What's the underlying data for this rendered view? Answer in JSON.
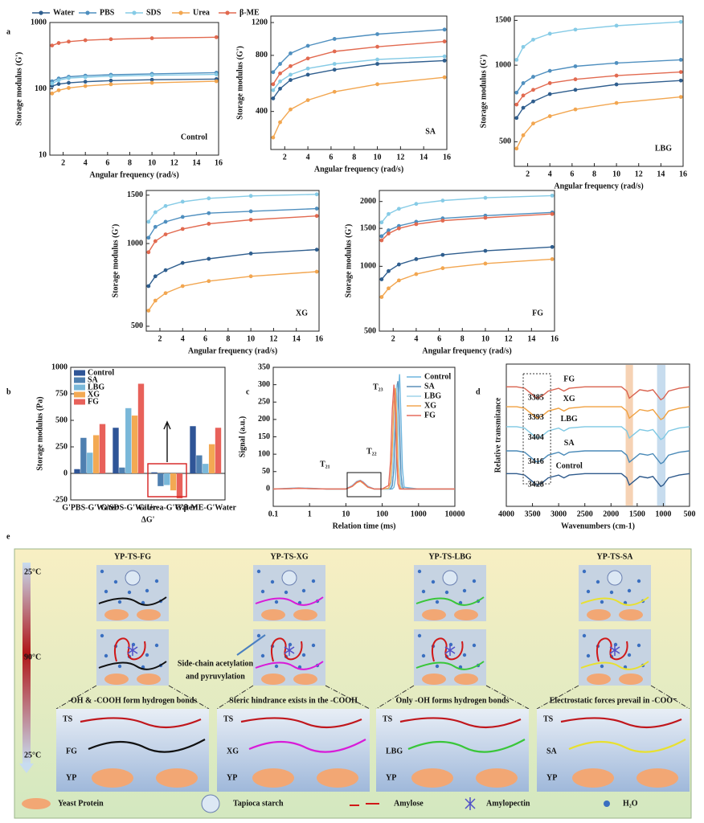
{
  "chart_data": [
    {
      "type": "line",
      "panel": "a",
      "label": "Control",
      "legend": true,
      "markers": true,
      "yscale": "log",
      "x_label": "Angular frequency (rad/s)",
      "y_label": "Storage modulus (G')",
      "x": [
        1,
        1.6,
        2.5,
        4,
        6.3,
        10,
        15.8
      ],
      "xlim": [
        0.8,
        16
      ],
      "xticks": [
        2,
        4,
        6,
        8,
        10,
        12,
        14,
        16
      ],
      "ylim": [
        10,
        1000
      ],
      "yticks": [
        10,
        100,
        1000
      ],
      "series": [
        {
          "name": "Water",
          "color": "#2f5e8e",
          "values": [
            110,
            118,
            123,
            128,
            133,
            137,
            140
          ]
        },
        {
          "name": "PBS",
          "color": "#4f8fbf",
          "values": [
            130,
            143,
            152,
            158,
            163,
            168,
            175
          ]
        },
        {
          "name": "SDS",
          "color": "#86cbe6",
          "values": [
            120,
            135,
            145,
            150,
            155,
            160,
            165
          ]
        },
        {
          "name": "Urea",
          "color": "#f2a650",
          "values": [
            85,
            95,
            103,
            110,
            117,
            123,
            130
          ]
        },
        {
          "name": "β-ME",
          "color": "#e26a50",
          "values": [
            450,
            490,
            515,
            540,
            560,
            580,
            600
          ]
        }
      ]
    },
    {
      "type": "line",
      "label": "SA",
      "markers": true,
      "yscale": "log",
      "x_label": "Angular frequency (rad/s)",
      "y_label": "Storage modulus (G')",
      "x": [
        1,
        1.6,
        2.5,
        4,
        6.3,
        10,
        15.8
      ],
      "xlim": [
        0.8,
        16
      ],
      "xticks": [
        2,
        4,
        6,
        8,
        10,
        12,
        14,
        16
      ],
      "ylim": [
        250,
        1300
      ],
      "yticks": [
        400,
        800,
        1200
      ],
      "series": [
        {
          "color": "#2f5e8e",
          "values": [
            470,
            530,
            590,
            630,
            670,
            720,
            750
          ]
        },
        {
          "color": "#4f8fbf",
          "values": [
            650,
            720,
            820,
            900,
            980,
            1040,
            1100
          ]
        },
        {
          "color": "#86cbe6",
          "values": [
            520,
            580,
            630,
            680,
            720,
            760,
            790
          ]
        },
        {
          "color": "#f2a650",
          "values": [
            290,
            350,
            410,
            460,
            510,
            560,
            610
          ]
        },
        {
          "color": "#e26a50",
          "values": [
            560,
            640,
            700,
            770,
            840,
            890,
            950
          ]
        }
      ]
    },
    {
      "type": "line",
      "label": "LBG",
      "markers": true,
      "yscale": "log",
      "x_label": "Angular frequency (rad/s)",
      "y_label": "Storage modulus (G')",
      "x": [
        1,
        1.6,
        2.5,
        4,
        6.3,
        10,
        15.8
      ],
      "xlim": [
        0.8,
        16
      ],
      "xticks": [
        2,
        4,
        6,
        8,
        10,
        12,
        14,
        16
      ],
      "ylim": [
        400,
        1560
      ],
      "yticks": [
        500,
        1000,
        1500
      ],
      "series": [
        {
          "color": "#2f5e8e",
          "values": [
            620,
            680,
            720,
            770,
            800,
            840,
            870
          ]
        },
        {
          "color": "#4f8fbf",
          "values": [
            780,
            850,
            900,
            950,
            990,
            1020,
            1050
          ]
        },
        {
          "color": "#86cbe6",
          "values": [
            1050,
            1180,
            1260,
            1330,
            1380,
            1430,
            1480
          ]
        },
        {
          "color": "#f2a650",
          "values": [
            470,
            530,
            590,
            630,
            670,
            710,
            750
          ]
        },
        {
          "color": "#e26a50",
          "values": [
            700,
            760,
            800,
            850,
            880,
            910,
            940
          ]
        }
      ]
    },
    {
      "type": "line",
      "label": "XG",
      "markers": true,
      "yscale": "log",
      "x_label": "Angular frequency (rad/s)",
      "y_label": "Storage modulus (G')",
      "x": [
        1,
        1.6,
        2.5,
        4,
        6.3,
        10,
        15.8
      ],
      "xlim": [
        0.8,
        16
      ],
      "xticks": [
        2,
        4,
        6,
        8,
        10,
        12,
        14,
        16
      ],
      "ylim": [
        480,
        1560
      ],
      "yticks": [
        500,
        1000,
        1500
      ],
      "series": [
        {
          "color": "#2f5e8e",
          "values": [
            700,
            760,
            800,
            850,
            880,
            920,
            950
          ]
        },
        {
          "color": "#4f8fbf",
          "values": [
            1050,
            1150,
            1200,
            1250,
            1290,
            1310,
            1340
          ]
        },
        {
          "color": "#86cbe6",
          "values": [
            1200,
            1300,
            1370,
            1420,
            1460,
            1490,
            1510
          ]
        },
        {
          "color": "#f2a650",
          "values": [
            570,
            620,
            660,
            700,
            730,
            760,
            790
          ]
        },
        {
          "color": "#e26a50",
          "values": [
            930,
            1020,
            1080,
            1130,
            1180,
            1220,
            1260
          ]
        }
      ]
    },
    {
      "type": "line",
      "label": "FG",
      "markers": true,
      "yscale": "log",
      "x_label": "Angular frequency (rad/s)",
      "y_label": "Storage modulus (G')",
      "x": [
        1,
        1.6,
        2.5,
        4,
        6.3,
        10,
        15.8
      ],
      "xlim": [
        0.8,
        16
      ],
      "xticks": [
        2,
        4,
        6,
        8,
        10,
        12,
        14,
        16
      ],
      "ylim": [
        500,
        2250
      ],
      "yticks": [
        500,
        1000,
        1500,
        2000
      ],
      "series": [
        {
          "color": "#2f5e8e",
          "values": [
            870,
            950,
            1020,
            1080,
            1130,
            1180,
            1230
          ]
        },
        {
          "color": "#4f8fbf",
          "values": [
            1380,
            1470,
            1540,
            1610,
            1670,
            1720,
            1780
          ]
        },
        {
          "color": "#86cbe6",
          "values": [
            1600,
            1750,
            1850,
            1950,
            2020,
            2080,
            2130
          ]
        },
        {
          "color": "#f2a650",
          "values": [
            720,
            790,
            860,
            920,
            980,
            1030,
            1080
          ]
        },
        {
          "color": "#e26a50",
          "values": [
            1320,
            1420,
            1500,
            1570,
            1630,
            1680,
            1750
          ]
        }
      ]
    },
    {
      "type": "bar",
      "panel": "b",
      "x_label": "ΔG'",
      "y_label": "Storage modulus (Pa)",
      "categories": [
        "G'PBS-G'Water",
        "G'SDS-G'Water",
        "G'Urea-G'Water",
        "G'β-ME-G'Water"
      ],
      "ylim": [
        -250,
        1000
      ],
      "yticks": [
        -250,
        0,
        250,
        500,
        750,
        1000
      ],
      "series": [
        {
          "name": "Control",
          "color": "#2f5597",
          "values": [
            40,
            430,
            10,
            445
          ]
        },
        {
          "name": "SA",
          "color": "#4e7fb0",
          "values": [
            335,
            55,
            -120,
            170
          ]
        },
        {
          "name": "LBG",
          "color": "#7ab8d9",
          "values": [
            195,
            615,
            -110,
            90
          ]
        },
        {
          "name": "XG",
          "color": "#f3a953",
          "values": [
            360,
            545,
            -160,
            275
          ]
        },
        {
          "name": "FG",
          "color": "#e8615a",
          "values": [
            465,
            845,
            -235,
            430
          ]
        }
      ]
    },
    {
      "type": "line",
      "panel": "c",
      "legend": true,
      "xscale": "log",
      "x_label": "Relation time (ms)",
      "y_label": "Signal (a.u.)",
      "annotations": [
        "T₂₁",
        "T₂₂",
        "T₂₃"
      ],
      "x": [
        0.1,
        0.3,
        0.5,
        1,
        3,
        10,
        15,
        20,
        25,
        30,
        40,
        60,
        100,
        150,
        170,
        190,
        210,
        230,
        250,
        270,
        300,
        330,
        360,
        400,
        1000,
        10000
      ],
      "xlim": [
        0.1,
        10000
      ],
      "xticks": [
        0.1,
        1,
        10,
        100,
        1000,
        10000
      ],
      "ylim": [
        -50,
        350
      ],
      "yticks": [
        0,
        50,
        100,
        150,
        200,
        250,
        300,
        350
      ],
      "series": [
        {
          "name": "Control",
          "color": "#6fb6df",
          "values": [
            0,
            2,
            3,
            2,
            0,
            0,
            10,
            22,
            25,
            20,
            8,
            0,
            0,
            0,
            0,
            0,
            5,
            30,
            120,
            250,
            330,
            200,
            60,
            5,
            0,
            0
          ]
        },
        {
          "name": "SA",
          "color": "#5b8fb9",
          "values": [
            0,
            1,
            2,
            1,
            0,
            0,
            8,
            20,
            23,
            18,
            6,
            0,
            0,
            0,
            0,
            10,
            60,
            180,
            290,
            310,
            180,
            40,
            5,
            0,
            0,
            0
          ]
        },
        {
          "name": "LBG",
          "color": "#9fd3ea",
          "values": [
            0,
            1,
            2,
            1,
            0,
            0,
            9,
            21,
            24,
            19,
            7,
            0,
            0,
            0,
            5,
            40,
            150,
            270,
            300,
            200,
            60,
            8,
            0,
            0,
            0,
            0
          ]
        },
        {
          "name": "XG",
          "color": "#f2a552",
          "values": [
            0,
            1,
            2,
            1,
            0,
            0,
            7,
            18,
            22,
            16,
            5,
            0,
            0,
            2,
            20,
            120,
            250,
            290,
            200,
            70,
            10,
            0,
            0,
            0,
            0,
            0
          ]
        },
        {
          "name": "FG",
          "color": "#e56b5d",
          "values": [
            0,
            1,
            2,
            1,
            0,
            0,
            8,
            20,
            24,
            18,
            6,
            0,
            0,
            10,
            80,
            230,
            300,
            220,
            90,
            15,
            0,
            0,
            0,
            0,
            0,
            0
          ]
        }
      ]
    },
    {
      "type": "line",
      "panel": "d",
      "series_labels": true,
      "x_label": "Wavenumbers (cm-1)",
      "y_label": "Relative transmitance",
      "peak_labels": [
        "3385",
        "3393",
        "3404",
        "3416",
        "3428"
      ],
      "bands": [
        {
          "range": [
            1720,
            1580
          ],
          "color": "#f4c7a1"
        },
        {
          "range": [
            1120,
            960
          ],
          "color": "#b9d3ea"
        }
      ],
      "x": [
        4000,
        3800,
        3650,
        3550,
        3450,
        3400,
        3300,
        3200,
        3000,
        2900,
        2800,
        2500,
        2000,
        1800,
        1700,
        1650,
        1550,
        1450,
        1300,
        1200,
        1050,
        1000,
        900,
        700,
        500
      ],
      "xlim": [
        4000,
        500
      ],
      "xticks": [
        4000,
        3500,
        3000,
        2500,
        2000,
        1500,
        1000,
        500
      ],
      "ylim": [
        0,
        10
      ],
      "series": [
        {
          "name": "FG",
          "color": "#d9634f",
          "values": [
            8.4,
            8.4,
            8.3,
            8.0,
            7.7,
            7.6,
            7.8,
            8.1,
            8.3,
            8.1,
            8.3,
            8.4,
            8.4,
            8.4,
            8.1,
            7.6,
            7.9,
            8.2,
            8.1,
            8.2,
            7.5,
            7.6,
            8.1,
            8.3,
            8.4
          ]
        },
        {
          "name": "XG",
          "color": "#f0a040",
          "values": [
            7.0,
            7.0,
            6.9,
            6.6,
            6.3,
            6.2,
            6.4,
            6.7,
            6.9,
            6.7,
            6.9,
            7.0,
            7.0,
            7.0,
            6.7,
            6.2,
            6.5,
            6.8,
            6.7,
            6.8,
            6.1,
            6.2,
            6.7,
            6.9,
            7.0
          ]
        },
        {
          "name": "LBG",
          "color": "#7ec8e3",
          "values": [
            5.6,
            5.6,
            5.5,
            5.2,
            4.9,
            4.8,
            5.0,
            5.3,
            5.5,
            5.3,
            5.5,
            5.6,
            5.6,
            5.6,
            5.3,
            4.8,
            5.1,
            5.4,
            5.3,
            5.4,
            4.7,
            4.8,
            5.3,
            5.5,
            5.6
          ]
        },
        {
          "name": "SA",
          "color": "#4a8ab8",
          "values": [
            3.9,
            3.9,
            3.8,
            3.5,
            3.2,
            3.1,
            3.3,
            3.6,
            3.8,
            3.6,
            3.8,
            3.9,
            3.9,
            3.9,
            3.6,
            3.1,
            3.4,
            3.7,
            3.6,
            3.7,
            3.0,
            3.1,
            3.6,
            3.8,
            3.9
          ]
        },
        {
          "name": "Control",
          "color": "#2e5a8c",
          "values": [
            2.3,
            2.3,
            2.2,
            1.9,
            1.6,
            1.5,
            1.7,
            2.0,
            2.2,
            2.0,
            2.2,
            2.3,
            2.3,
            2.3,
            2.0,
            1.5,
            1.8,
            2.1,
            2.0,
            2.1,
            1.4,
            1.5,
            2.0,
            2.2,
            2.3
          ]
        }
      ]
    }
  ],
  "diagram": {
    "panel": "e",
    "temperatures": [
      "25°C",
      "90°C",
      "25°C"
    ],
    "note": [
      "Side-chain acetylation",
      "and pyruvylation"
    ],
    "columns": [
      {
        "title": "YP-TS-FG",
        "caption": "-OH & -COOH form hydrogen bonds",
        "labels": [
          "TS",
          "FG",
          "YP"
        ]
      },
      {
        "title": "YP-TS-XG",
        "caption": "Steric hindrance exists in the -COOH",
        "labels": [
          "TS",
          "XG",
          "YP"
        ]
      },
      {
        "title": "YP-TS-LBG",
        "caption": "Only -OH forms hydrogen bonds",
        "labels": [
          "TS",
          "LBG",
          "YP"
        ]
      },
      {
        "title": "YP-TS-SA",
        "caption": "Electrostatic forces prevail in -COO⁻",
        "labels": [
          "TS",
          "SA",
          "YP"
        ]
      }
    ],
    "legend": [
      "Yeast Protein",
      "Tapioca starch",
      "Amylose",
      "Amylopectin",
      "H₂O"
    ]
  }
}
